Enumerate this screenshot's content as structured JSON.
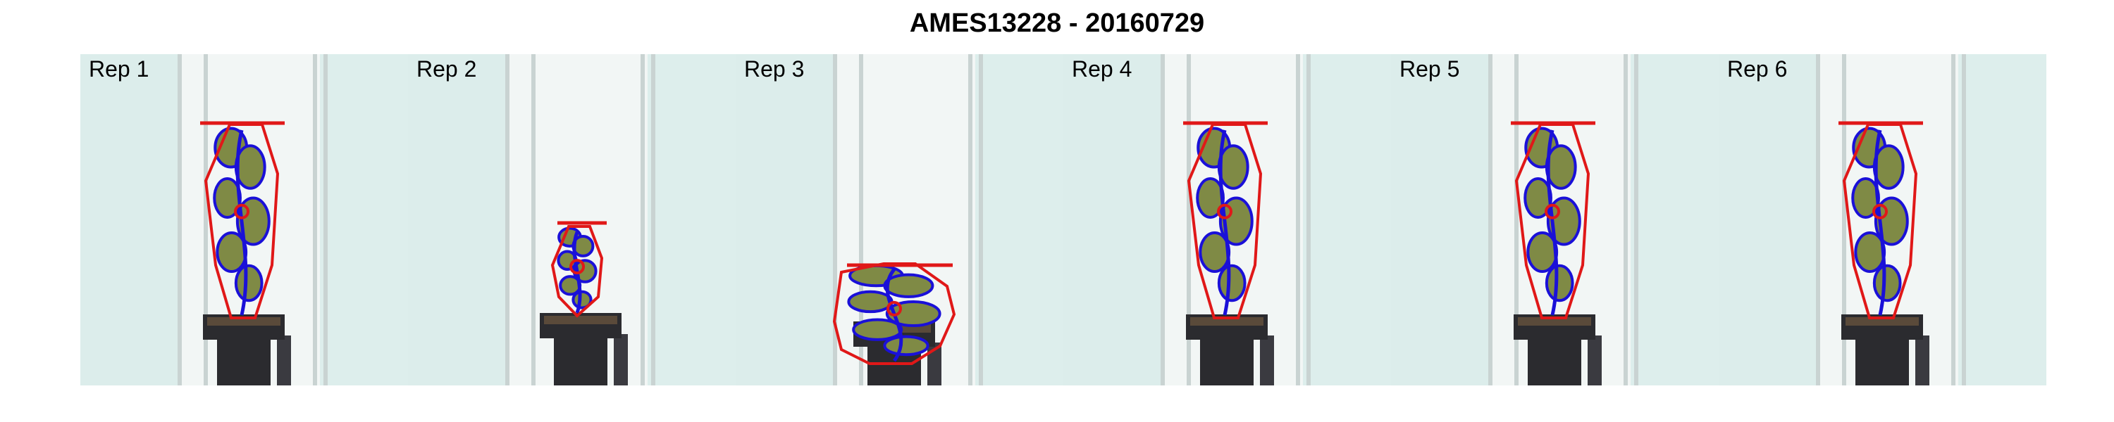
{
  "figure": {
    "title": "AMES13228 - 20160729"
  },
  "panels": [
    {
      "label": "Rep 1",
      "shape": "tall"
    },
    {
      "label": "Rep 2",
      "shape": "small"
    },
    {
      "label": "Rep 3",
      "shape": "wide"
    },
    {
      "label": "Rep 4",
      "shape": "tall"
    },
    {
      "label": "Rep 5",
      "shape": "tall"
    },
    {
      "label": "Rep 6",
      "shape": "tall"
    }
  ],
  "colors": {
    "background": "#eaf3f1",
    "wall_tint": "#cfe8e6",
    "plant_fill": "#7f8a45",
    "contour": "#1a10d8",
    "hull": "#e01818",
    "pot": "#2b2b2f",
    "soil": "#5a4a3a"
  }
}
